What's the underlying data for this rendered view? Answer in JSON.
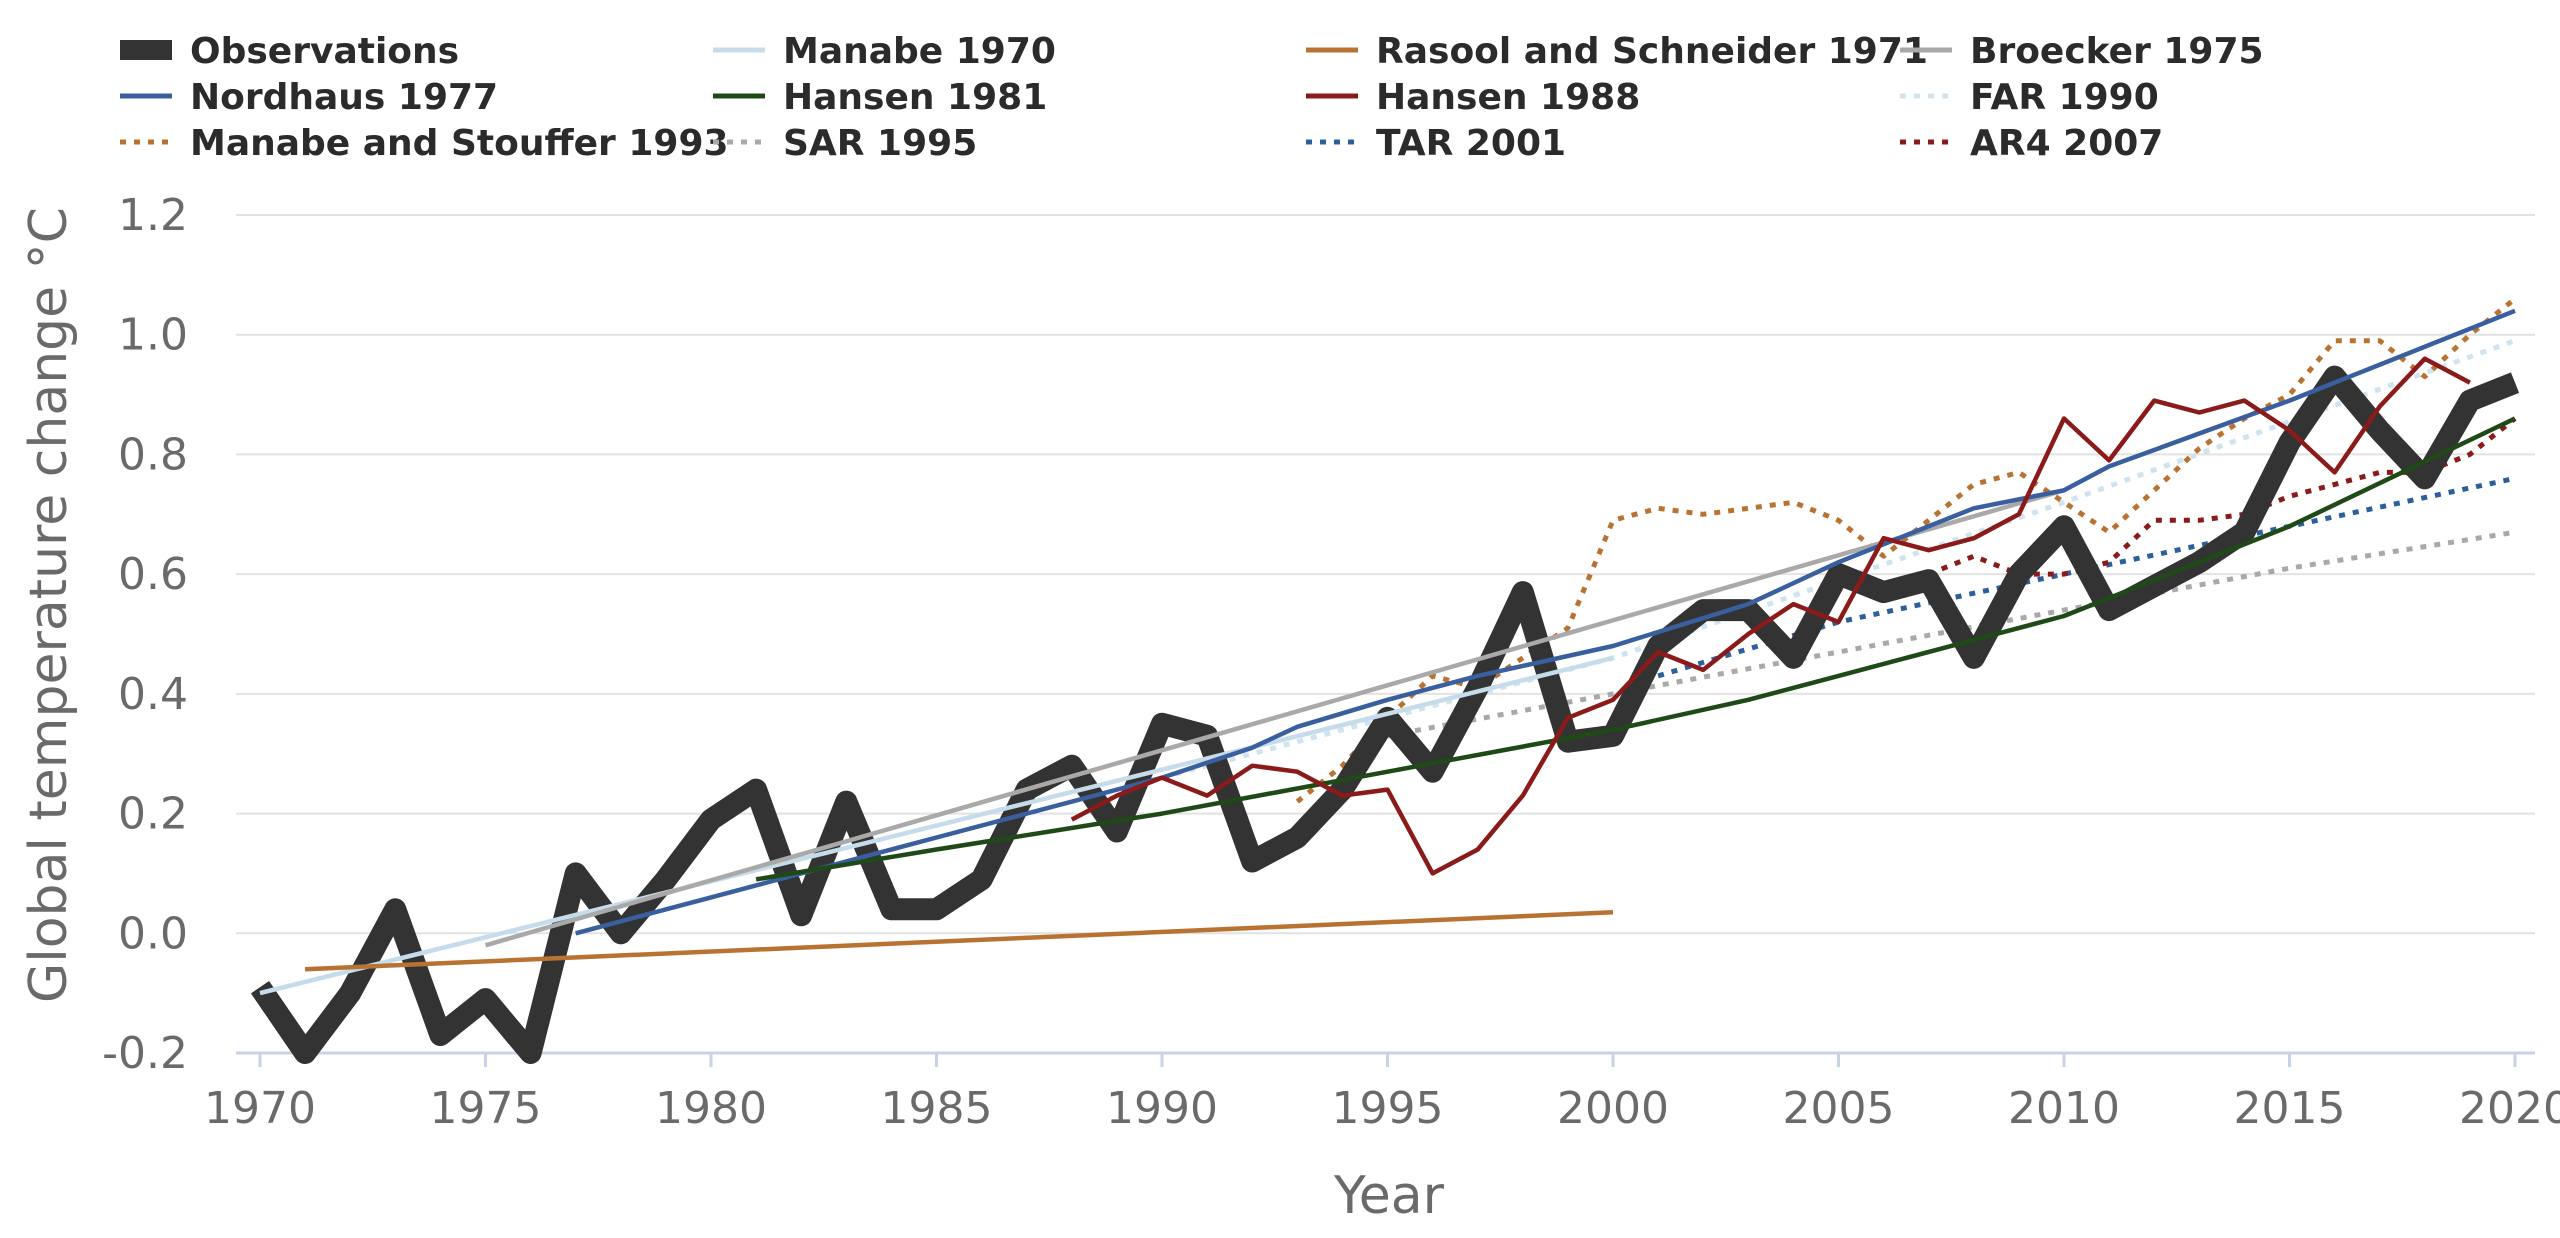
{
  "chart_data": {
    "type": "line",
    "title": "",
    "xlabel": "Year",
    "ylabel": "Global temperature change °C",
    "xlim": [
      1970,
      2020
    ],
    "ylim": [
      -0.2,
      1.2
    ],
    "x_ticks": [
      "1970",
      "1975",
      "1980",
      "1985",
      "1990",
      "1995",
      "2000",
      "2005",
      "2010",
      "2015",
      "2020"
    ],
    "y_ticks": [
      "-0.2",
      "0.0",
      "0.2",
      "0.4",
      "0.6",
      "0.8",
      "1.0",
      "1.2"
    ],
    "grid": "horizontal",
    "legend_position": "top",
    "series": [
      {
        "name": "Observations",
        "color": "#333333",
        "style": "thick",
        "x": [
          1970,
          1971,
          1972,
          1973,
          1974,
          1975,
          1976,
          1977,
          1978,
          1979,
          1980,
          1981,
          1982,
          1983,
          1984,
          1985,
          1986,
          1987,
          1988,
          1989,
          1990,
          1991,
          1992,
          1993,
          1994,
          1995,
          1996,
          1997,
          1998,
          1999,
          2000,
          2001,
          2002,
          2003,
          2004,
          2005,
          2006,
          2007,
          2008,
          2009,
          2010,
          2011,
          2012,
          2013,
          2014,
          2015,
          2016,
          2017,
          2018,
          2019,
          2020
        ],
        "y": [
          -0.09,
          -0.2,
          -0.1,
          0.04,
          -0.17,
          -0.11,
          -0.2,
          0.1,
          0.0,
          0.09,
          0.19,
          0.24,
          0.03,
          0.22,
          0.04,
          0.04,
          0.09,
          0.24,
          0.28,
          0.17,
          0.35,
          0.33,
          0.12,
          0.16,
          0.24,
          0.36,
          0.27,
          0.41,
          0.57,
          0.32,
          0.33,
          0.48,
          0.54,
          0.54,
          0.46,
          0.6,
          0.57,
          0.59,
          0.46,
          0.6,
          0.68,
          0.54,
          0.58,
          0.62,
          0.67,
          0.82,
          0.93,
          0.84,
          0.76,
          0.89,
          0.92
        ]
      },
      {
        "name": "Manabe 1970",
        "color": "#c6dcea",
        "style": "solid",
        "x": [
          1970,
          2000
        ],
        "y": [
          -0.1,
          0.46
        ]
      },
      {
        "name": "Rasool and Schneider 1971",
        "color": "#b87333",
        "style": "solid",
        "x": [
          1971,
          2000
        ],
        "y": [
          -0.06,
          0.035
        ]
      },
      {
        "name": "Broecker 1975",
        "color": "#a9a9a9",
        "style": "solid",
        "x": [
          1975,
          2010
        ],
        "y": [
          -0.02,
          0.74
        ]
      },
      {
        "name": "Nordhaus 1977",
        "color": "#3a5f9e",
        "style": "solid",
        "x": [
          1977,
          1980,
          1985,
          1990,
          1992,
          1993,
          1995,
          1997,
          2000,
          2003,
          2005,
          2008,
          2010,
          2011,
          2015,
          2020
        ],
        "y": [
          0.0,
          0.06,
          0.16,
          0.26,
          0.31,
          0.345,
          0.39,
          0.43,
          0.48,
          0.55,
          0.62,
          0.71,
          0.74,
          0.78,
          0.89,
          1.04
        ]
      },
      {
        "name": "Hansen 1981",
        "color": "#1f4a17",
        "style": "solid",
        "x": [
          1981,
          1985,
          1990,
          1995,
          2000,
          2003,
          2005,
          2010,
          2015,
          2020
        ],
        "y": [
          0.09,
          0.14,
          0.2,
          0.27,
          0.34,
          0.39,
          0.43,
          0.53,
          0.68,
          0.86
        ]
      },
      {
        "name": "Hansen 1988",
        "color": "#8b1a1a",
        "style": "solid",
        "x": [
          1988,
          1989,
          1990,
          1991,
          1992,
          1993,
          1994,
          1995,
          1996,
          1997,
          1998,
          1999,
          2000,
          2001,
          2002,
          2003,
          2004,
          2005,
          2006,
          2007,
          2008,
          2009,
          2010,
          2011,
          2012,
          2013,
          2014,
          2015,
          2016,
          2017,
          2018,
          2019
        ],
        "y": [
          0.19,
          0.23,
          0.26,
          0.23,
          0.28,
          0.27,
          0.23,
          0.24,
          0.1,
          0.14,
          0.23,
          0.36,
          0.39,
          0.47,
          0.44,
          0.5,
          0.55,
          0.52,
          0.66,
          0.64,
          0.66,
          0.7,
          0.86,
          0.79,
          0.89,
          0.87,
          0.89,
          0.84,
          0.77,
          0.88,
          0.96,
          0.92
        ]
      },
      {
        "name": "FAR 1990",
        "color": "#d0e4ef",
        "style": "dotted",
        "x": [
          1990,
          2000,
          2010,
          2020
        ],
        "y": [
          0.26,
          0.46,
          0.72,
          0.99
        ]
      },
      {
        "name": "Manabe and Stouffer 1993",
        "color": "#b87333",
        "style": "dotted",
        "x": [
          1993,
          1994,
          1995,
          1996,
          1997,
          1998,
          1999,
          2000,
          2001,
          2002,
          2003,
          2004,
          2005,
          2006,
          2007,
          2008,
          2009,
          2010,
          2011,
          2012,
          2013,
          2014,
          2015,
          2016,
          2017,
          2018,
          2019,
          2020
        ],
        "y": [
          0.22,
          0.28,
          0.36,
          0.43,
          0.41,
          0.46,
          0.51,
          0.69,
          0.71,
          0.7,
          0.71,
          0.72,
          0.69,
          0.63,
          0.69,
          0.75,
          0.77,
          0.72,
          0.67,
          0.74,
          0.81,
          0.86,
          0.9,
          0.99,
          0.99,
          0.93,
          1.0,
          1.06
        ]
      },
      {
        "name": "SAR 1995",
        "color": "#a9a9a9",
        "style": "dotted",
        "x": [
          1995,
          2000,
          2005,
          2010,
          2015,
          2020
        ],
        "y": [
          0.33,
          0.4,
          0.47,
          0.54,
          0.61,
          0.67
        ]
      },
      {
        "name": "TAR 2001",
        "color": "#2d5f9a",
        "style": "dotted",
        "x": [
          2001,
          2005,
          2010,
          2015,
          2020
        ],
        "y": [
          0.43,
          0.52,
          0.6,
          0.68,
          0.76
        ]
      },
      {
        "name": "AR4 2007",
        "color": "#8b1a1a",
        "style": "dotted",
        "x": [
          2007,
          2008,
          2009,
          2010,
          2011,
          2012,
          2013,
          2014,
          2015,
          2016,
          2017,
          2018,
          2019,
          2020
        ],
        "y": [
          0.6,
          0.63,
          0.6,
          0.6,
          0.62,
          0.69,
          0.69,
          0.7,
          0.73,
          0.75,
          0.77,
          0.77,
          0.8,
          0.86
        ]
      }
    ]
  }
}
